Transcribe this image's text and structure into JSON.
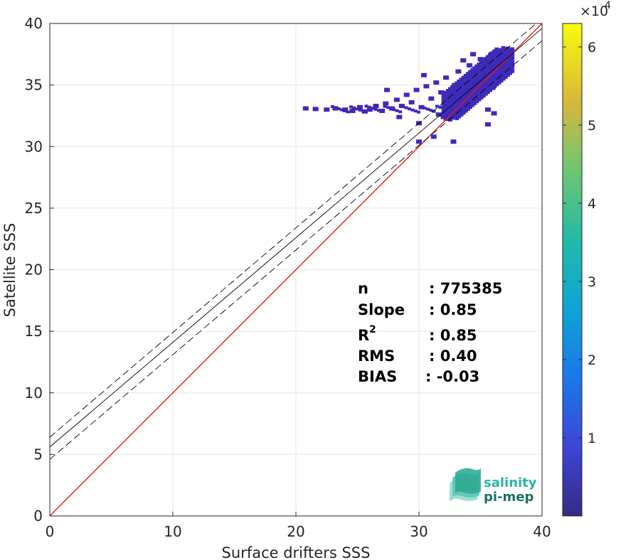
{
  "chart_data": {
    "type": "heatmap",
    "xlabel": "Surface drifters SSS",
    "ylabel": "Satellite SSS",
    "xlim": [
      0,
      40
    ],
    "ylim": [
      0,
      40
    ],
    "xticks": [
      "0",
      "10",
      "20",
      "30",
      "40"
    ],
    "yticks": [
      "0",
      "5",
      "10",
      "15",
      "20",
      "25",
      "30",
      "35",
      "40"
    ],
    "grid": true,
    "colormap": "parula",
    "colorbar": {
      "range": [
        0,
        63000
      ],
      "ticks": [
        "1",
        "2",
        "3",
        "4",
        "5",
        "6"
      ],
      "exponent_label": "×10",
      "exponent_power": "4"
    },
    "lines": [
      {
        "name": "one-to-one",
        "color": "#e8171a",
        "style": "solid",
        "x": [
          0,
          40
        ],
        "y": [
          0,
          40
        ]
      },
      {
        "name": "regression",
        "color": "#000000",
        "style": "solid",
        "x": [
          0,
          40
        ],
        "y": [
          5.6,
          39.6
        ]
      },
      {
        "name": "regression-plus",
        "color": "#000000",
        "style": "dashed",
        "x": [
          0,
          40
        ],
        "y": [
          6.4,
          40.4
        ]
      },
      {
        "name": "regression-minus",
        "color": "#000000",
        "style": "dashed",
        "x": [
          0,
          40
        ],
        "y": [
          4.6,
          38.6
        ]
      }
    ],
    "density_cells": [
      {
        "x": 20.8,
        "y": 33.1
      },
      {
        "x": 21.6,
        "y": 33.05
      },
      {
        "x": 22.5,
        "y": 33.0
      },
      {
        "x": 23.2,
        "y": 33.1
      },
      {
        "x": 24.0,
        "y": 33.0
      },
      {
        "x": 24.6,
        "y": 32.9
      },
      {
        "x": 25.2,
        "y": 33.2
      },
      {
        "x": 25.6,
        "y": 32.85
      },
      {
        "x": 26.0,
        "y": 33.0
      },
      {
        "x": 26.5,
        "y": 33.3
      },
      {
        "x": 27.0,
        "y": 32.9
      },
      {
        "x": 27.3,
        "y": 33.5
      },
      {
        "x": 27.8,
        "y": 33.1
      },
      {
        "x": 28.2,
        "y": 33.8
      },
      {
        "x": 28.6,
        "y": 33.3
      },
      {
        "x": 29.0,
        "y": 34.2
      },
      {
        "x": 29.4,
        "y": 33.6
      },
      {
        "x": 29.8,
        "y": 34.6
      },
      {
        "x": 30.2,
        "y": 33.2
      },
      {
        "x": 30.6,
        "y": 34.9
      },
      {
        "x": 31.0,
        "y": 33.9
      },
      {
        "x": 31.4,
        "y": 35.2
      },
      {
        "x": 31.8,
        "y": 34.4
      },
      {
        "x": 32.2,
        "y": 35.6
      },
      {
        "x": 32.5,
        "y": 33.6
      },
      {
        "x": 32.9,
        "y": 35.0
      },
      {
        "x": 33.2,
        "y": 36.1
      },
      {
        "x": 33.5,
        "y": 34.3
      },
      {
        "x": 33.8,
        "y": 35.5
      },
      {
        "x": 34.1,
        "y": 36.6
      },
      {
        "x": 34.4,
        "y": 34.8
      },
      {
        "x": 34.7,
        "y": 36.0
      },
      {
        "x": 35.0,
        "y": 37.1
      },
      {
        "x": 35.3,
        "y": 35.3
      },
      {
        "x": 35.6,
        "y": 36.6
      },
      {
        "x": 35.9,
        "y": 37.5
      },
      {
        "x": 36.2,
        "y": 35.9
      },
      {
        "x": 36.5,
        "y": 37.0
      },
      {
        "x": 36.8,
        "y": 37.7
      },
      {
        "x": 37.1,
        "y": 36.5
      },
      {
        "x": 37.4,
        "y": 37.4
      },
      {
        "x": 35.6,
        "y": 33.0
      },
      {
        "x": 32.0,
        "y": 32.4
      },
      {
        "x": 31.2,
        "y": 30.8
      },
      {
        "x": 30.0,
        "y": 30.4
      },
      {
        "x": 32.8,
        "y": 30.4
      },
      {
        "x": 35.6,
        "y": 31.8
      },
      {
        "x": 36.1,
        "y": 32.7
      },
      {
        "x": 34.4,
        "y": 37.5
      },
      {
        "x": 33.6,
        "y": 37.0
      },
      {
        "x": 30.4,
        "y": 35.8
      },
      {
        "x": 27.4,
        "y": 34.6
      },
      {
        "x": 30.0,
        "y": 31.9
      },
      {
        "x": 28.4,
        "y": 32.4
      },
      {
        "x": 34.0,
        "y": 33.4
      },
      {
        "x": 35.0,
        "y": 34.2
      },
      {
        "x": 36.0,
        "y": 34.8
      },
      {
        "x": 33.0,
        "y": 32.8
      },
      {
        "x": 31.6,
        "y": 32.6
      },
      {
        "x": 34.6,
        "y": 33.8
      }
    ]
  },
  "stats": {
    "n_label": "n",
    "n_value": ": 775385",
    "slope_label": "Slope",
    "slope_value": ": 0.85",
    "r2_label": "R",
    "r2_sup": "2",
    "r2_value": ": 0.85",
    "rms_label": "RMS",
    "rms_value": ": 0.40",
    "bias_label": "BIAS",
    "bias_value": ": -0.03"
  },
  "logo": {
    "line1": "salinity",
    "line2": "pi-mep",
    "color1": "#2bb5a3",
    "color2": "#1a6f66"
  },
  "colors": {
    "density": "#3d2ab8",
    "one_to_one": "#e8171a"
  }
}
